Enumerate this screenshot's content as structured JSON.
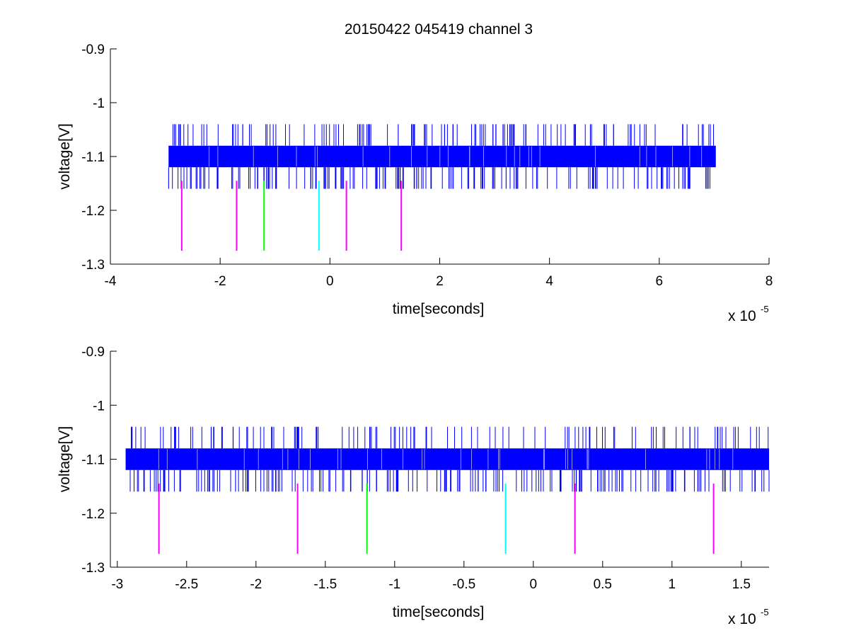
{
  "figure_title": "20150422 045419 channel 3",
  "chart_data": [
    {
      "type": "line",
      "title": "20150422 045419 channel 3",
      "xlabel": "time[seconds]",
      "ylabel": "voltage[V]",
      "x_exponent_label": "x 10",
      "x_exponent": "-5",
      "xlim": [
        -4e-05,
        8e-05
      ],
      "ylim": [
        -1.3,
        -0.9
      ],
      "yreverse": true,
      "x_ticks": [
        -4,
        -2,
        0,
        2,
        4,
        6,
        8
      ],
      "x_tick_labels": [
        "-4",
        "-2",
        "0",
        "2",
        "4",
        "6",
        "8"
      ],
      "y_ticks": [
        -0.9,
        -1.0,
        -1.1,
        -1.2,
        -1.3
      ],
      "y_tick_labels": [
        "-0.9",
        "-1",
        "-1.1",
        "-1.2",
        "-1.3"
      ],
      "signal": {
        "color": "#0000ff",
        "x_range": [
          -2.94e-05,
          7.03e-05
        ],
        "levels": [
          -1.04,
          -1.08,
          -1.12,
          -1.16
        ],
        "band": [
          -1.08,
          -1.12
        ]
      },
      "markers": [
        {
          "x": -2.7e-05,
          "y_top": -1.145,
          "y_bottom": -1.275,
          "color": "#ff00ff"
        },
        {
          "x": -1.7e-05,
          "y_top": -1.145,
          "y_bottom": -1.275,
          "color": "#ff00ff"
        },
        {
          "x": -1.2e-05,
          "y_top": -1.145,
          "y_bottom": -1.275,
          "color": "#00ff00"
        },
        {
          "x": -2e-06,
          "y_top": -1.145,
          "y_bottom": -1.275,
          "color": "#00ffff"
        },
        {
          "x": 3e-06,
          "y_top": -1.145,
          "y_bottom": -1.275,
          "color": "#ff00ff"
        },
        {
          "x": 1.3e-05,
          "y_top": -1.145,
          "y_bottom": -1.275,
          "color": "#ff00ff"
        }
      ]
    },
    {
      "type": "line",
      "title": "",
      "xlabel": "time[seconds]",
      "ylabel": "voltage[V]",
      "x_exponent_label": "x 10",
      "x_exponent": "-5",
      "xlim": [
        -3.05e-05,
        1.7e-05
      ],
      "ylim": [
        -1.3,
        -0.9
      ],
      "yreverse": true,
      "x_ticks": [
        -3,
        -2.5,
        -2,
        -1.5,
        -1,
        -0.5,
        0,
        0.5,
        1,
        1.5
      ],
      "x_tick_labels": [
        "-3",
        "-2.5",
        "-2",
        "-1.5",
        "-1",
        "-0.5",
        "0",
        "0.5",
        "1",
        "1.5"
      ],
      "y_ticks": [
        -0.9,
        -1.0,
        -1.1,
        -1.2,
        -1.3
      ],
      "y_tick_labels": [
        "-0.9",
        "-1",
        "-1.1",
        "-1.2",
        "-1.3"
      ],
      "signal": {
        "color": "#0000ff",
        "x_range": [
          -2.94e-05,
          1.7e-05
        ],
        "levels": [
          -1.04,
          -1.08,
          -1.12,
          -1.16
        ],
        "band": [
          -1.08,
          -1.12
        ]
      },
      "markers": [
        {
          "x": -2.7e-05,
          "y_top": -1.145,
          "y_bottom": -1.275,
          "color": "#ff00ff"
        },
        {
          "x": -1.7e-05,
          "y_top": -1.145,
          "y_bottom": -1.275,
          "color": "#ff00ff"
        },
        {
          "x": -1.2e-05,
          "y_top": -1.145,
          "y_bottom": -1.275,
          "color": "#00ff00"
        },
        {
          "x": -2e-06,
          "y_top": -1.145,
          "y_bottom": -1.275,
          "color": "#00ffff"
        },
        {
          "x": 3e-06,
          "y_top": -1.145,
          "y_bottom": -1.275,
          "color": "#ff00ff"
        },
        {
          "x": 1.3e-05,
          "y_top": -1.145,
          "y_bottom": -1.275,
          "color": "#ff00ff"
        }
      ]
    }
  ]
}
